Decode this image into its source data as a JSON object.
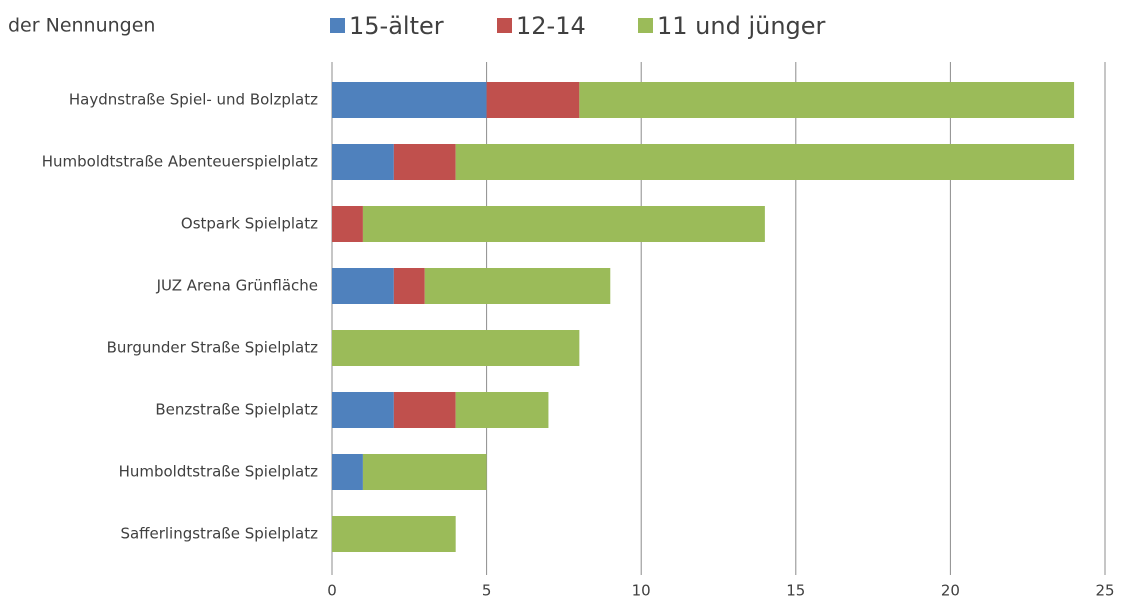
{
  "chart_data": {
    "type": "bar",
    "orientation": "horizontal",
    "stacked": true,
    "subtitle": "der Nennungen",
    "categories": [
      "Haydnstraße Spiel- und Bolzplatz",
      "Humboldtstraße Abenteuerspielplatz",
      "Ostpark Spielplatz",
      "JUZ Arena Grünfläche",
      "Burgunder Straße Spielplatz",
      "Benzstraße Spielplatz",
      "Humboldtstraße Spielplatz",
      "Safferlingstraße Spielplatz"
    ],
    "series": [
      {
        "name": "15-älter",
        "color": "#4f81bd",
        "values": [
          5,
          2,
          0,
          2,
          0,
          2,
          1,
          0
        ]
      },
      {
        "name": "12-14",
        "color": "#c0504d",
        "values": [
          3,
          2,
          1,
          1,
          0,
          2,
          0,
          0
        ]
      },
      {
        "name": "11 und jünger",
        "color": "#9bbb59",
        "values": [
          16,
          20,
          13,
          6,
          8,
          3,
          4,
          4
        ]
      }
    ],
    "xlim": [
      0,
      25
    ],
    "xticks": [
      0,
      5,
      10,
      15,
      20,
      25
    ],
    "grid": true
  }
}
